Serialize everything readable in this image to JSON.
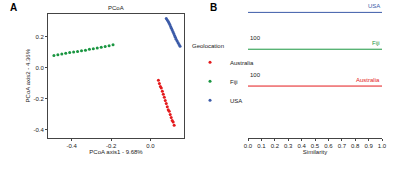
{
  "chart_data": [
    {
      "type": "scatter",
      "panel_label": "A",
      "title": "PCoA",
      "x_label": "PCoA axis1 - 9.68%",
      "y_label": "PCoA axis2 - 4.36%",
      "legend_title": "Geolocation",
      "xlim": [
        -0.52,
        0.17
      ],
      "ylim": [
        -0.45,
        0.35
      ],
      "xticks": [
        -0.4,
        -0.2,
        {
          "value": 0,
          "label": "0.0"
        }
      ],
      "yticks": [
        -0.4,
        -0.2,
        {
          "value": 0,
          "label": "0.0"
        },
        0.2
      ],
      "series": [
        {
          "name": "Australia",
          "color": "#e41a1c",
          "x": [
            0.04,
            0.045,
            0.05,
            0.055,
            0.06,
            0.065,
            0.07,
            0.075,
            0.08,
            0.085,
            0.09,
            0.095,
            0.1,
            0.105,
            0.11,
            0.115,
            0.12
          ],
          "y": [
            -0.08,
            -0.1,
            -0.12,
            -0.13,
            -0.15,
            -0.17,
            -0.19,
            -0.21,
            -0.23,
            -0.25,
            -0.27,
            -0.28,
            -0.3,
            -0.32,
            -0.34,
            -0.35,
            -0.37
          ]
        },
        {
          "name": "Fiji",
          "color": "#1a9641",
          "x": [
            -0.49,
            -0.47,
            -0.45,
            -0.43,
            -0.41,
            -0.39,
            -0.37,
            -0.35,
            -0.33,
            -0.31,
            -0.29,
            -0.27,
            -0.25,
            -0.23,
            -0.21,
            -0.19
          ],
          "y": [
            0.08,
            0.085,
            0.09,
            0.095,
            0.099,
            0.103,
            0.107,
            0.111,
            0.115,
            0.12,
            0.124,
            0.129,
            0.134,
            0.139,
            0.144,
            0.15
          ]
        },
        {
          "name": "USA",
          "color": "#3c5ba8",
          "x": [
            0.08,
            0.085,
            0.09,
            0.094,
            0.098,
            0.102,
            0.106,
            0.11,
            0.114,
            0.118,
            0.122,
            0.126,
            0.13,
            0.135,
            0.14,
            0.145,
            0.15
          ],
          "y": [
            0.32,
            0.31,
            0.3,
            0.29,
            0.28,
            0.268,
            0.256,
            0.245,
            0.234,
            0.222,
            0.21,
            0.198,
            0.186,
            0.174,
            0.162,
            0.151,
            0.14
          ]
        }
      ]
    },
    {
      "type": "dendrogram",
      "panel_label": "B",
      "x_label": "Similarity",
      "xlim": [
        0,
        1
      ],
      "xticks": [
        {
          "value": 0,
          "label": "0.0"
        },
        0.1,
        0.2,
        0.3,
        0.4,
        0.5,
        0.6,
        0.7,
        0.8,
        0.9,
        {
          "value": 1,
          "label": "1.0"
        }
      ],
      "leaves": [
        {
          "name": "USA",
          "color": "#3c5ba8"
        },
        {
          "name": "Fiji",
          "color": "#1a9641"
        },
        {
          "name": "Australia",
          "color": "#e41a1c"
        }
      ],
      "merges": [
        {
          "similarity": 1,
          "label": "100"
        },
        {
          "similarity": 1,
          "label": "100"
        }
      ]
    }
  ]
}
